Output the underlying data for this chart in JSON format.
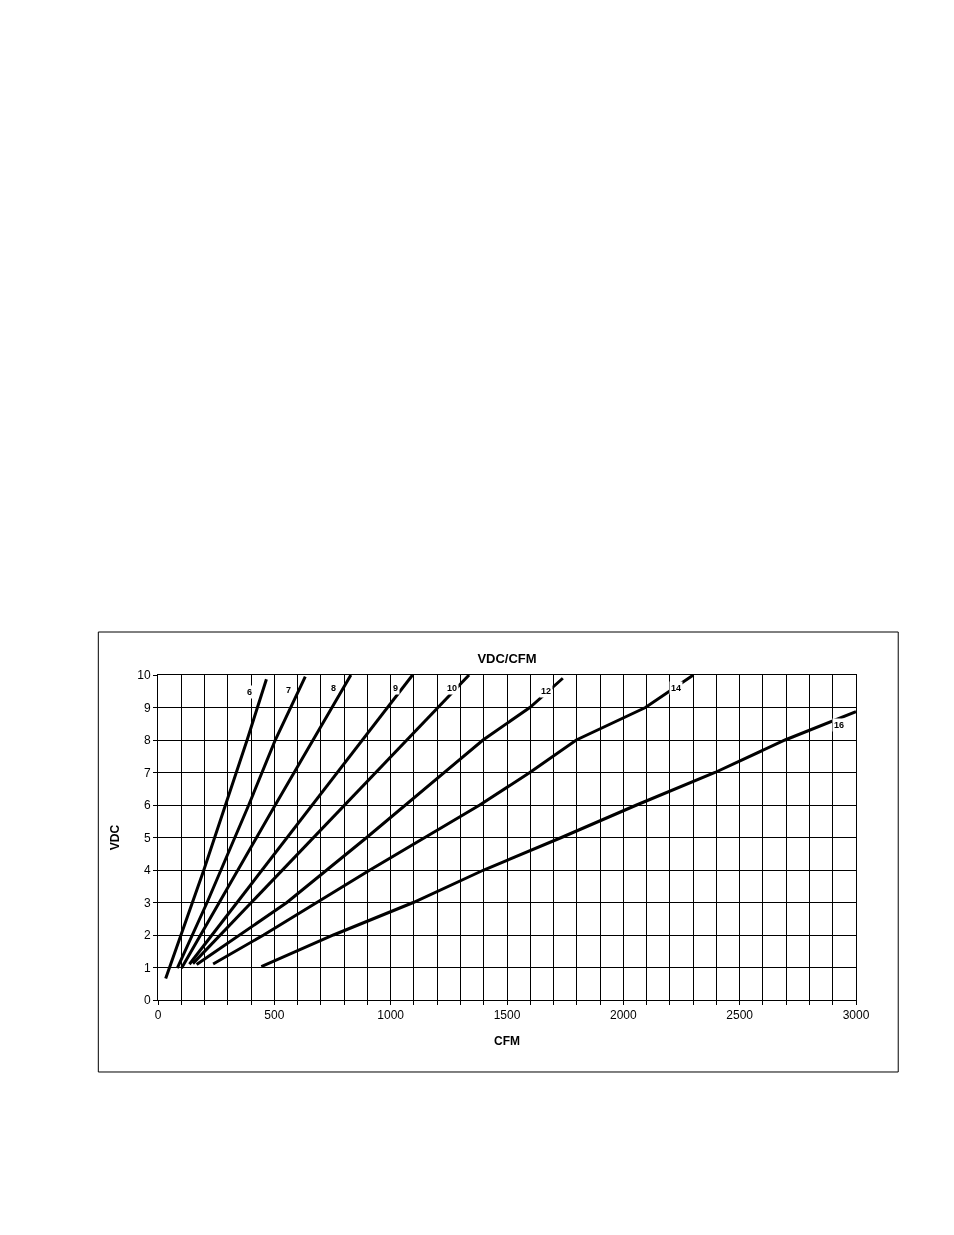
{
  "chart_data": {
    "type": "line",
    "title": "VDC/CFM",
    "xlabel": "CFM",
    "ylabel": "VDC",
    "xlim": [
      0,
      3000
    ],
    "ylim": [
      0,
      10
    ],
    "xticks": [
      0,
      {
        "value": 100,
        "label": null
      },
      {
        "value": 200,
        "label": null
      },
      {
        "value": 300,
        "label": null
      },
      {
        "value": 400,
        "label": null
      },
      500,
      {
        "value": 600,
        "label": null
      },
      {
        "value": 700,
        "label": null
      },
      {
        "value": 800,
        "label": null
      },
      {
        "value": 900,
        "label": null
      },
      1000,
      {
        "value": 1100,
        "label": null
      },
      {
        "value": 1200,
        "label": null
      },
      {
        "value": 1300,
        "label": null
      },
      {
        "value": 1400,
        "label": null
      },
      1500,
      {
        "value": 1600,
        "label": null
      },
      {
        "value": 1700,
        "label": null
      },
      {
        "value": 1800,
        "label": null
      },
      {
        "value": 1900,
        "label": null
      },
      2000,
      {
        "value": 2100,
        "label": null
      },
      {
        "value": 2200,
        "label": null
      },
      {
        "value": 2300,
        "label": null
      },
      {
        "value": 2400,
        "label": null
      },
      2500,
      {
        "value": 2600,
        "label": null
      },
      {
        "value": 2700,
        "label": null
      },
      {
        "value": 2800,
        "label": null
      },
      {
        "value": 2900,
        "label": null
      },
      3000
    ],
    "yticks": [
      0,
      1,
      2,
      3,
      4,
      5,
      6,
      7,
      8,
      9,
      10
    ],
    "grid": true,
    "legend": false,
    "marker": "none",
    "line_style": "solid",
    "series": [
      {
        "name": "6",
        "color": "#000000",
        "x": [
          33,
          197,
          383,
          466
        ],
        "values": [
          0.66,
          4,
          8,
          9.87
        ]
      },
      {
        "name": "7",
        "color": "#000000",
        "x": [
          83,
          211,
          390,
          504,
          633
        ],
        "values": [
          0.98,
          3,
          6,
          8,
          9.95
        ]
      },
      {
        "name": "8",
        "color": "#000000",
        "x": [
          101,
          504,
          829
        ],
        "values": [
          0.98,
          6,
          10
        ]
      },
      {
        "name": "9",
        "color": "#000000",
        "x": [
          135,
          1094
        ],
        "values": [
          1.1,
          10
        ]
      },
      {
        "name": "10",
        "color": "#000000",
        "x": [
          150,
          1337
        ],
        "values": [
          1.12,
          10
        ]
      },
      {
        "name": "12",
        "color": "#000000",
        "x": [
          166,
          554,
          897,
          1397,
          1598,
          1740
        ],
        "values": [
          1.09,
          3,
          5,
          8,
          9,
          9.9
        ]
      },
      {
        "name": "14",
        "color": "#000000",
        "x": [
          237,
          454,
          911,
          1383,
          1598,
          1798,
          2095,
          2301
        ],
        "values": [
          1.11,
          2,
          4,
          6,
          7,
          8,
          9,
          10
        ]
      },
      {
        "name": "16",
        "color": "#000000",
        "x": [
          444,
          754,
          1097,
          1400,
          1734,
          2057,
          2394,
          2695,
          3000
        ],
        "values": [
          1.03,
          2,
          3,
          4,
          5,
          6,
          7,
          8,
          8.87
        ]
      }
    ]
  }
}
